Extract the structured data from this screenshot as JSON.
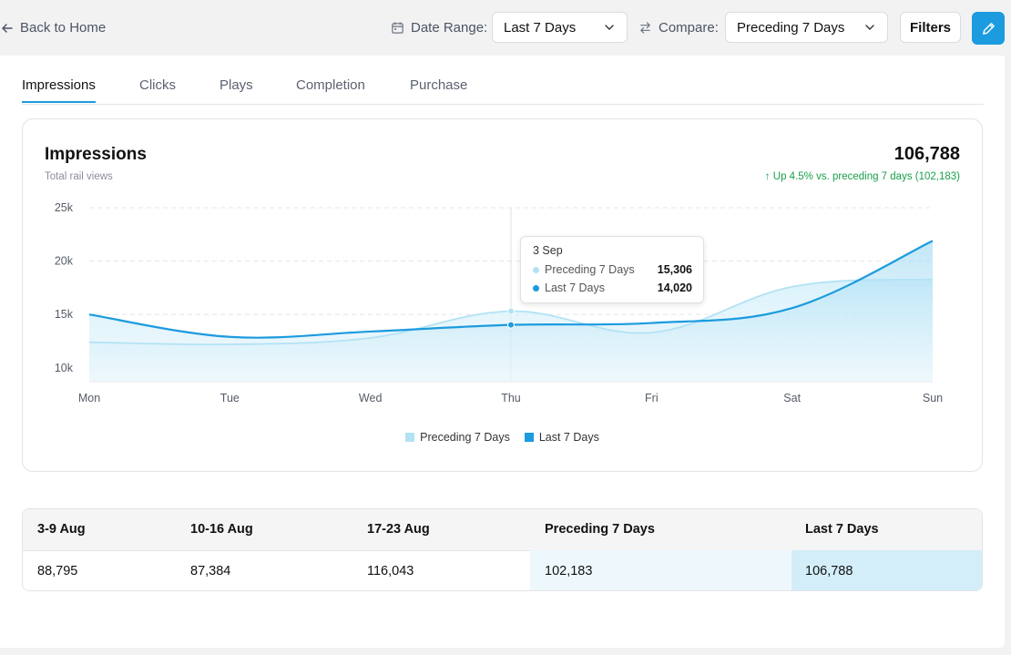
{
  "header": {
    "back_label": "Back to Home",
    "date_range_label": "Date Range:",
    "date_range_value": "Last 7 Days",
    "compare_label": "Compare:",
    "compare_value": "Preceding 7 Days",
    "filters_label": "Filters"
  },
  "tabs": [
    {
      "label": "Impressions",
      "active": true
    },
    {
      "label": "Clicks",
      "active": false
    },
    {
      "label": "Plays",
      "active": false
    },
    {
      "label": "Completion",
      "active": false
    },
    {
      "label": "Purchase",
      "active": false
    }
  ],
  "chart": {
    "title": "Impressions",
    "subtitle": "Total rail views",
    "total": "106,788",
    "change": "↑ Up 4.5% vs. preceding 7 days (102,183)",
    "tooltip": {
      "date": "3 Sep",
      "rows": [
        {
          "name": "Preceding 7 Days",
          "value": "15,306",
          "color": "#b3e2f5"
        },
        {
          "name": "Last 7 Days",
          "value": "14,020",
          "color": "#1c9bde"
        }
      ]
    },
    "legend": [
      {
        "name": "Preceding 7 Days",
        "color": "#b3e2f5"
      },
      {
        "name": "Last 7 Days",
        "color": "#1c9bde"
      }
    ]
  },
  "chart_data": {
    "type": "area",
    "categories": [
      "Mon",
      "Tue",
      "Wed",
      "Thu",
      "Fri",
      "Sat",
      "Sun"
    ],
    "yticks": [
      "25k",
      "20k",
      "15k",
      "10k"
    ],
    "ytick_values": [
      25000,
      20000,
      15000,
      10000
    ],
    "ylim": [
      8700,
      25000
    ],
    "series": [
      {
        "name": "Preceding 7 Days",
        "color": "#b3e2f5",
        "values": [
          12400,
          12200,
          12800,
          15306,
          13300,
          17600,
          18300
        ]
      },
      {
        "name": "Last 7 Days",
        "color": "#1c9bde",
        "values": [
          15000,
          12900,
          13400,
          14020,
          14200,
          15600,
          21900
        ]
      }
    ],
    "highlight_index": 3
  },
  "table": {
    "headers": [
      "3-9 Aug",
      "10-16 Aug",
      "17-23 Aug",
      "Preceding 7 Days",
      "Last 7 Days"
    ],
    "values": [
      "88,795",
      "87,384",
      "116,043",
      "102,183",
      "106,788"
    ]
  }
}
